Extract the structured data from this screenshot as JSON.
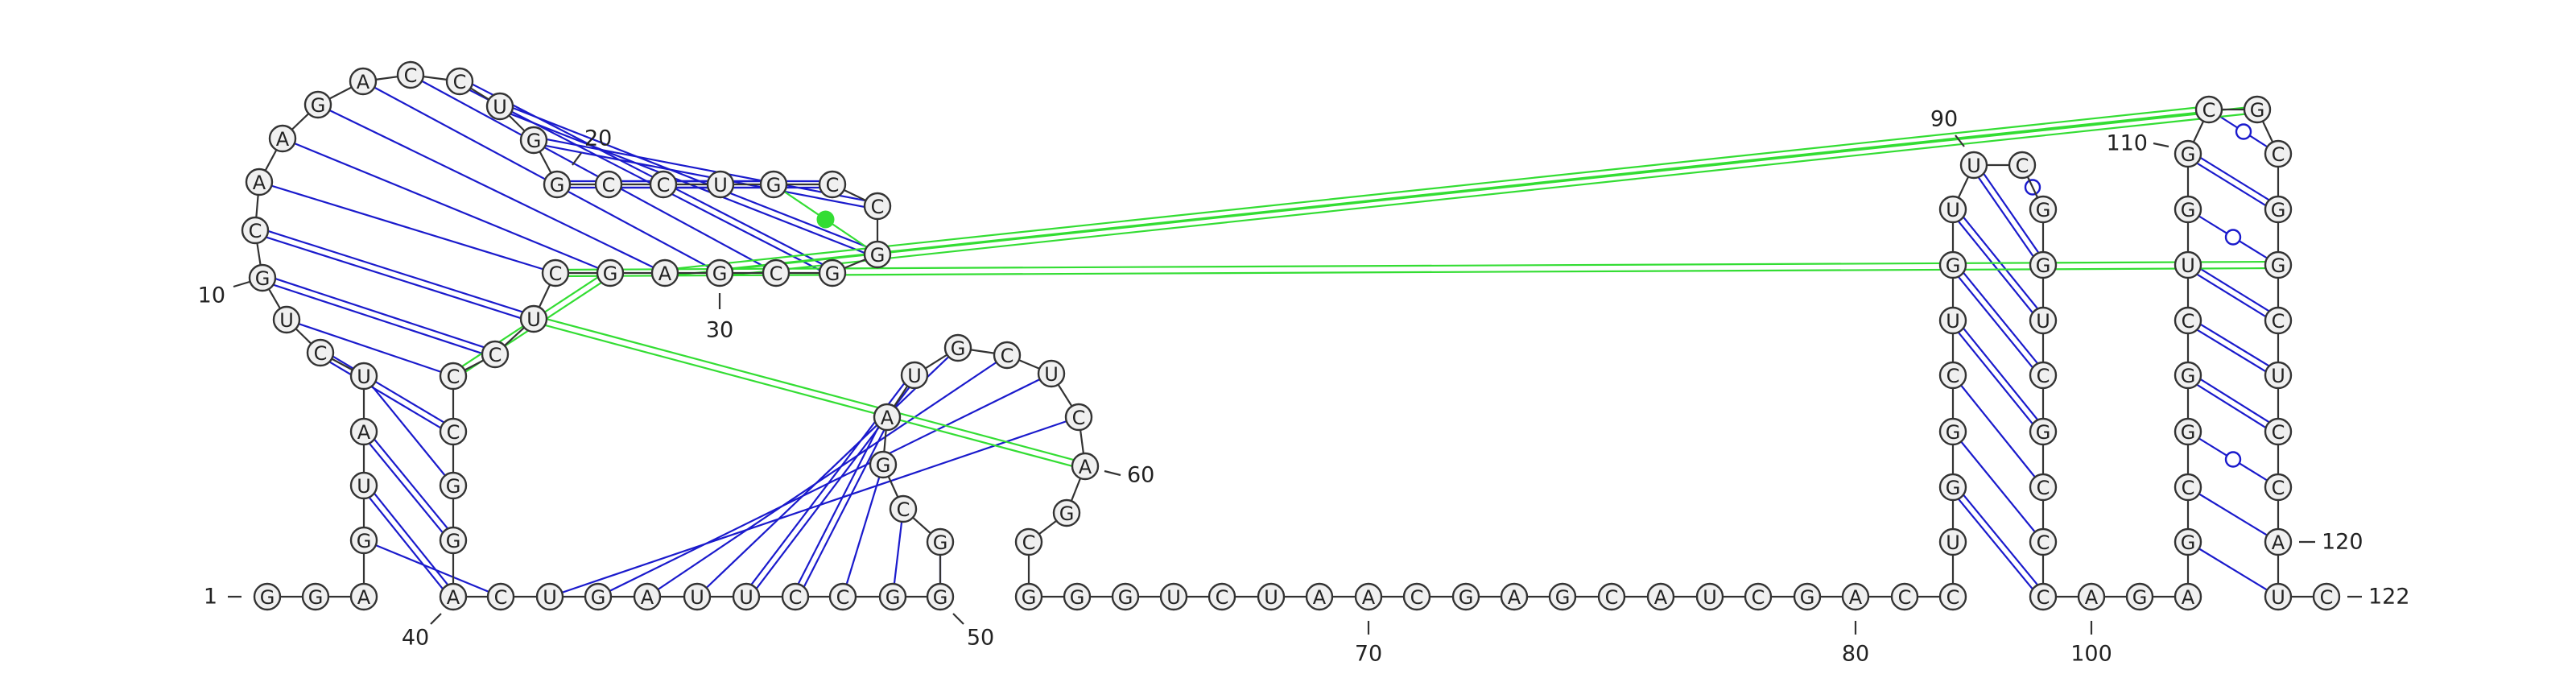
{
  "diagram": {
    "type": "rna-secondary-structure",
    "sequence": "GGAGUAUCUGCAAGACCUGGCCUGCCGGCGAGCUCCCGGACUGAUUCCGGGCGAUGCUCAGCGGGUCUAACGAGCAUCGACCUGGCUGUUCGGUCGCCCAGAGCGGCUGGCGCGGCUCCAUC",
    "length": 122,
    "position_labels": [
      {
        "n": 1,
        "text": "1"
      },
      {
        "n": 10,
        "text": "10"
      },
      {
        "n": 20,
        "text": "20"
      },
      {
        "n": 30,
        "text": "30"
      },
      {
        "n": 40,
        "text": "40"
      },
      {
        "n": 50,
        "text": "50"
      },
      {
        "n": 60,
        "text": "60"
      },
      {
        "n": 70,
        "text": "70"
      },
      {
        "n": 80,
        "text": "80"
      },
      {
        "n": 90,
        "text": "90"
      },
      {
        "n": 100,
        "text": "100"
      },
      {
        "n": 110,
        "text": "110"
      },
      {
        "n": 120,
        "text": "120"
      },
      {
        "n": 122,
        "text": "122"
      }
    ],
    "colors": {
      "canonical_pair": "#1a1acc",
      "tertiary_pair": "#33dd33",
      "backbone": "#333333",
      "nucleotide_fill": "#f0f0f0"
    },
    "pairs": [
      {
        "i": 4,
        "j": 41,
        "type": "single"
      },
      {
        "i": 5,
        "j": 40,
        "type": "double"
      },
      {
        "i": 6,
        "j": 39,
        "type": "double"
      },
      {
        "i": 7,
        "j": 38,
        "type": "single"
      },
      {
        "i": 8,
        "j": 37,
        "type": "double"
      },
      {
        "i": 9,
        "j": 36,
        "type": "single"
      },
      {
        "i": 10,
        "j": 35,
        "type": "double"
      },
      {
        "i": 11,
        "j": 34,
        "type": "double"
      },
      {
        "i": 12,
        "j": 33,
        "type": "single"
      },
      {
        "i": 13,
        "j": 32,
        "type": "single"
      },
      {
        "i": 14,
        "j": 31,
        "type": "single"
      },
      {
        "i": 15,
        "j": 30,
        "type": "single"
      },
      {
        "i": 16,
        "j": 29,
        "type": "single"
      },
      {
        "i": 17,
        "j": 28,
        "type": "double"
      },
      {
        "i": 18,
        "j": 27,
        "type": "double"
      },
      {
        "i": 19,
        "j": 26,
        "type": "double"
      },
      {
        "i": 20,
        "j": 25,
        "type": "double"
      },
      {
        "i": 21,
        "j": 24,
        "type": "double"
      },
      {
        "i": 22,
        "j": 23,
        "type": "double"
      },
      {
        "i": 42,
        "j": 59,
        "type": "single"
      },
      {
        "i": 43,
        "j": 58,
        "type": "single"
      },
      {
        "i": 44,
        "j": 57,
        "type": "single"
      },
      {
        "i": 45,
        "j": 56,
        "type": "single"
      },
      {
        "i": 46,
        "j": 55,
        "type": "double"
      },
      {
        "i": 47,
        "j": 54,
        "type": "double"
      },
      {
        "i": 48,
        "j": 53,
        "type": "single"
      },
      {
        "i": 49,
        "j": 52,
        "type": "single"
      },
      {
        "i": 50,
        "j": 51,
        "type": "single"
      },
      {
        "i": 84,
        "j": 99,
        "type": "double"
      },
      {
        "i": 85,
        "j": 98,
        "type": "single"
      },
      {
        "i": 86,
        "j": 97,
        "type": "single"
      },
      {
        "i": 87,
        "j": 96,
        "type": "double"
      },
      {
        "i": 88,
        "j": 95,
        "type": "double"
      },
      {
        "i": 89,
        "j": 94,
        "type": "double"
      },
      {
        "i": 90,
        "j": 93,
        "type": "double"
      },
      {
        "i": 91,
        "j": 92,
        "type": "wobble"
      },
      {
        "i": 103,
        "j": 121,
        "type": "single"
      },
      {
        "i": 104,
        "j": 120,
        "type": "single"
      },
      {
        "i": 105,
        "j": 119,
        "type": "wobble"
      },
      {
        "i": 106,
        "j": 118,
        "type": "double"
      },
      {
        "i": 107,
        "j": 117,
        "type": "double"
      },
      {
        "i": 108,
        "j": 116,
        "type": "double"
      },
      {
        "i": 109,
        "j": 115,
        "type": "wobble"
      },
      {
        "i": 110,
        "j": 114,
        "type": "double"
      },
      {
        "i": 111,
        "j": 113,
        "type": "wobble"
      }
    ],
    "tertiary": [
      {
        "i": 27,
        "j": 24,
        "type": "single"
      },
      {
        "i": 30,
        "j": 112,
        "type": "double"
      },
      {
        "i": 31,
        "j": 111,
        "type": "double"
      },
      {
        "i": 32,
        "j": 36,
        "type": "double"
      },
      {
        "i": 33,
        "j": 115,
        "type": "double"
      },
      {
        "i": 34,
        "j": 60,
        "type": "double"
      }
    ]
  }
}
